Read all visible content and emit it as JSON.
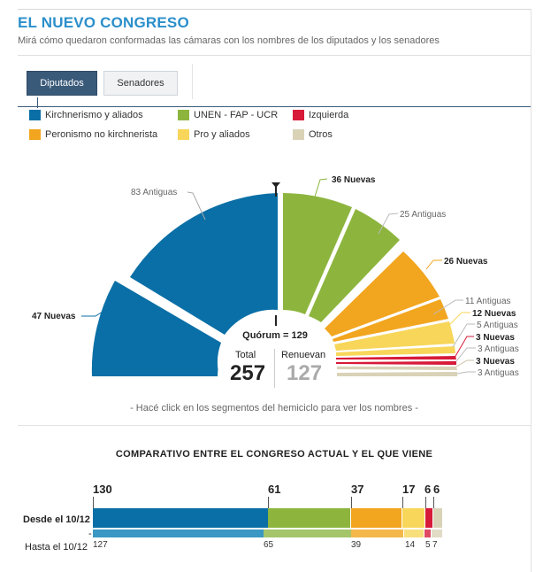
{
  "header": {
    "title": "EL NUEVO CONGRESO",
    "subtitle": "Mirá cómo quedaron conformadas las cámaras con los nombres de los diputados y los senadores"
  },
  "tabs": [
    {
      "label": "Diputados",
      "active": true
    },
    {
      "label": "Senadores",
      "active": false
    }
  ],
  "legend": [
    {
      "label": "Kirchnerismo y aliados",
      "color": "#0a6fa6"
    },
    {
      "label": "UNEN - FAP - UCR",
      "color": "#8db53e"
    },
    {
      "label": "Izquierda",
      "color": "#d71a39"
    },
    {
      "label": "Peronismo no kirchnerista",
      "color": "#f2a51e"
    },
    {
      "label": "Pro y aliados",
      "color": "#f7d65a"
    },
    {
      "label": "Otros",
      "color": "#d9d2b7"
    }
  ],
  "hemicycle": {
    "labels": {
      "k_nuevas": "47 Nuevas",
      "k_antiguas": "83 Antiguas",
      "unen_nuevas": "36 Nuevas",
      "unen_antiguas": "25 Antiguas",
      "pj_nuevas": "26 Nuevas",
      "pj_antiguas": "11 Antiguas",
      "pro_nuevas": "12 Nuevas",
      "pro_antiguas": "5 Antiguas",
      "izq_antiguas": "3 Antiguas",
      "izq_nuevas": "3 Nuevas",
      "otros_nuevas": "3 Nuevas",
      "otros_antiguas": "3 Antiguas"
    },
    "quorum": "Quórum = 129",
    "total_label": "Total",
    "total_value": "257",
    "renuevan_label": "Renuevan",
    "renuevan_value": "127"
  },
  "hint": "- Hacé click en los segmentos del hemiciclo para ver los nombres -",
  "comparison": {
    "title": "COMPARATIVO ENTRE EL CONGRESO ACTUAL Y EL QUE VIENE",
    "top_numbers": [
      "130",
      "61",
      "37",
      "17",
      "6",
      "6"
    ],
    "row1_label": "Desde el 10/12",
    "row2_label": "Hasta el 10/12",
    "bottom_numbers": [
      "127",
      "65",
      "39",
      "14",
      "5",
      "7"
    ]
  }
}
